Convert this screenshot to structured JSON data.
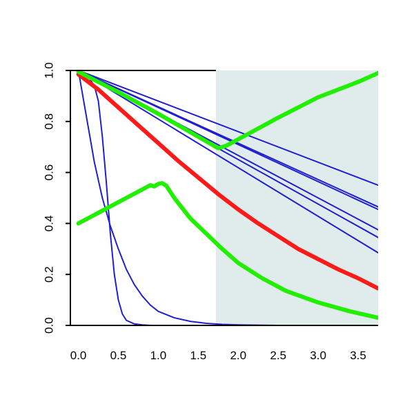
{
  "chart_data": {
    "type": "line",
    "title": "",
    "xlabel": "",
    "ylabel": "",
    "xlim": [
      -0.1,
      3.75
    ],
    "ylim": [
      0,
      1.0
    ],
    "x_ticks": [
      "0.0",
      "0.5",
      "1.0",
      "1.5",
      "2.0",
      "2.5",
      "3.0",
      "3.5"
    ],
    "y_ticks": [
      "0.0",
      "0.2",
      "0.4",
      "0.6",
      "0.8",
      "1.0"
    ],
    "grid": false,
    "legend": "none",
    "shaded_region": {
      "x_from": 1.72,
      "x_to": 3.75,
      "color": "#e0ecec"
    },
    "colors": {
      "thin": "#1f1fd0",
      "red": "#ff1a1a",
      "green": "#22ee00",
      "axis": "#000000"
    },
    "series": [
      {
        "color_key": "thin",
        "width": "thin",
        "points": [
          [
            0,
            1
          ],
          [
            0.1,
            0.985
          ],
          [
            0.2,
            0.94
          ],
          [
            0.25,
            0.88
          ],
          [
            0.3,
            0.74
          ],
          [
            0.35,
            0.56
          ],
          [
            0.4,
            0.36
          ],
          [
            0.45,
            0.2
          ],
          [
            0.5,
            0.1
          ],
          [
            0.55,
            0.045
          ],
          [
            0.6,
            0.02
          ],
          [
            0.7,
            0.006
          ],
          [
            0.8,
            0.002
          ],
          [
            0.9,
            0.0005
          ],
          [
            1.0,
            0.0
          ],
          [
            3.75,
            0.0
          ]
        ]
      },
      {
        "color_key": "thin",
        "width": "thin",
        "points": [
          [
            0,
            1
          ],
          [
            0.1,
            0.82
          ],
          [
            0.2,
            0.64
          ],
          [
            0.3,
            0.5
          ],
          [
            0.4,
            0.39
          ],
          [
            0.5,
            0.3
          ],
          [
            0.6,
            0.22
          ],
          [
            0.7,
            0.16
          ],
          [
            0.8,
            0.115
          ],
          [
            0.9,
            0.08
          ],
          [
            1.0,
            0.055
          ],
          [
            1.2,
            0.03
          ],
          [
            1.4,
            0.016
          ],
          [
            1.6,
            0.008
          ],
          [
            1.8,
            0.004
          ],
          [
            2.0,
            0.002
          ],
          [
            2.5,
            0.0
          ],
          [
            3.75,
            0.0
          ]
        ]
      },
      {
        "color_key": "thin",
        "width": "thin",
        "points": [
          [
            0,
            1
          ],
          [
            3.75,
            0.55
          ]
        ]
      },
      {
        "color_key": "thin",
        "width": "thin",
        "points": [
          [
            0,
            1
          ],
          [
            3.75,
            0.465
          ]
        ]
      },
      {
        "color_key": "thin",
        "width": "thin",
        "points": [
          [
            0,
            1
          ],
          [
            3.75,
            0.455
          ]
        ]
      },
      {
        "color_key": "thin",
        "width": "thin",
        "points": [
          [
            0,
            1
          ],
          [
            3.75,
            0.375
          ]
        ]
      },
      {
        "color_key": "thin",
        "width": "thin",
        "points": [
          [
            0,
            1
          ],
          [
            3.75,
            0.345
          ]
        ]
      },
      {
        "color_key": "thin",
        "width": "thin",
        "points": [
          [
            0,
            1
          ],
          [
            3.75,
            0.285
          ]
        ]
      },
      {
        "color_key": "red",
        "width": "thick",
        "points": [
          [
            0,
            0.985
          ],
          [
            0.25,
            0.925
          ],
          [
            0.5,
            0.855
          ],
          [
            0.75,
            0.785
          ],
          [
            1.0,
            0.715
          ],
          [
            1.25,
            0.645
          ],
          [
            1.5,
            0.58
          ],
          [
            1.75,
            0.515
          ],
          [
            2.0,
            0.455
          ],
          [
            2.25,
            0.4
          ],
          [
            2.5,
            0.35
          ],
          [
            2.75,
            0.3
          ],
          [
            3.0,
            0.26
          ],
          [
            3.25,
            0.22
          ],
          [
            3.5,
            0.185
          ],
          [
            3.75,
            0.145
          ]
        ]
      },
      {
        "color_key": "green",
        "width": "thick",
        "points": [
          [
            0,
            0.4
          ],
          [
            0.3,
            0.45
          ],
          [
            0.6,
            0.5
          ],
          [
            0.9,
            0.55
          ],
          [
            0.95,
            0.545
          ],
          [
            1.0,
            0.555
          ],
          [
            1.05,
            0.558
          ],
          [
            1.1,
            0.548
          ],
          [
            1.2,
            0.5
          ],
          [
            1.4,
            0.42
          ],
          [
            1.6,
            0.36
          ],
          [
            1.8,
            0.3
          ],
          [
            2.0,
            0.245
          ],
          [
            2.3,
            0.185
          ],
          [
            2.6,
            0.135
          ],
          [
            3.0,
            0.09
          ],
          [
            3.4,
            0.055
          ],
          [
            3.75,
            0.03
          ]
        ]
      },
      {
        "color_key": "green",
        "width": "thick",
        "points": [
          [
            0,
            0.995
          ],
          [
            0.5,
            0.915
          ],
          [
            1.0,
            0.83
          ],
          [
            1.5,
            0.74
          ],
          [
            1.75,
            0.695
          ],
          [
            1.85,
            0.705
          ],
          [
            2.0,
            0.73
          ],
          [
            2.5,
            0.815
          ],
          [
            3.0,
            0.895
          ],
          [
            3.5,
            0.955
          ],
          [
            3.75,
            0.99
          ]
        ]
      }
    ]
  }
}
